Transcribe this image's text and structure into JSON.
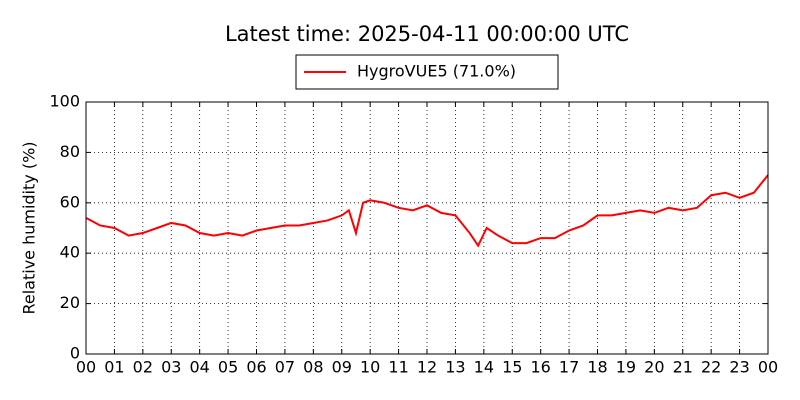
{
  "chart_data": {
    "type": "line",
    "title": "Latest time: 2025-04-11 00:00:00 UTC",
    "ylabel": "Relative humidity (%)",
    "x": [
      0,
      0.5,
      1,
      1.5,
      2,
      2.5,
      3,
      3.5,
      4,
      4.5,
      5,
      5.5,
      6,
      6.5,
      7,
      7.5,
      8,
      8.5,
      9,
      9.25,
      9.5,
      9.75,
      10,
      10.5,
      11,
      11.5,
      12,
      12.5,
      13,
      13.5,
      13.8,
      14.1,
      14.5,
      15,
      15.5,
      16,
      16.5,
      17,
      17.5,
      18,
      18.5,
      19,
      19.5,
      20,
      20.5,
      21,
      21.5,
      22,
      22.5,
      23,
      23.5,
      24
    ],
    "series": [
      {
        "name": "HygroVUE5 (71.0%)",
        "color": "#ff0000",
        "values": [
          54,
          51,
          50,
          47,
          48,
          50,
          52,
          51,
          48,
          47,
          48,
          47,
          49,
          50,
          51,
          51,
          52,
          53,
          55,
          57,
          48,
          60,
          61,
          60,
          58,
          57,
          59,
          56,
          55,
          48,
          43,
          50,
          47,
          44,
          44,
          46,
          46,
          49,
          51,
          55,
          55,
          56,
          57,
          56,
          58,
          57,
          58,
          63,
          64,
          62,
          64,
          71
        ]
      }
    ],
    "xlim": [
      0,
      24
    ],
    "xticks": [
      {
        "value": 0,
        "label": "00"
      },
      {
        "value": 1,
        "label": "01"
      },
      {
        "value": 2,
        "label": "02"
      },
      {
        "value": 3,
        "label": "03"
      },
      {
        "value": 4,
        "label": "04"
      },
      {
        "value": 5,
        "label": "05"
      },
      {
        "value": 6,
        "label": "06"
      },
      {
        "value": 7,
        "label": "07"
      },
      {
        "value": 8,
        "label": "08"
      },
      {
        "value": 9,
        "label": "09"
      },
      {
        "value": 10,
        "label": "10"
      },
      {
        "value": 11,
        "label": "11"
      },
      {
        "value": 12,
        "label": "12"
      },
      {
        "value": 13,
        "label": "13"
      },
      {
        "value": 14,
        "label": "14"
      },
      {
        "value": 15,
        "label": "15"
      },
      {
        "value": 16,
        "label": "16"
      },
      {
        "value": 17,
        "label": "17"
      },
      {
        "value": 18,
        "label": "18"
      },
      {
        "value": 19,
        "label": "19"
      },
      {
        "value": 20,
        "label": "20"
      },
      {
        "value": 21,
        "label": "21"
      },
      {
        "value": 22,
        "label": "22"
      },
      {
        "value": 23,
        "label": "23"
      },
      {
        "value": 24,
        "label": "00"
      }
    ],
    "ylim": [
      0,
      100
    ],
    "yticks": [
      0,
      20,
      40,
      60,
      80,
      100
    ],
    "grid": true,
    "legend": "top"
  }
}
